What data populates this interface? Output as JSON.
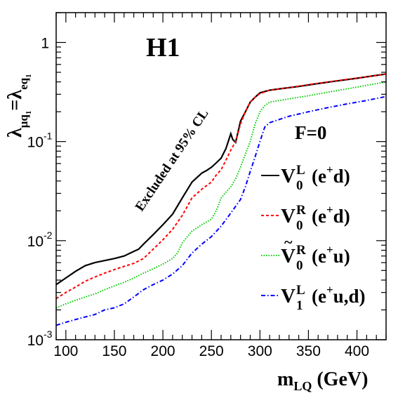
{
  "chart_data": {
    "type": "line",
    "experiment_label": "H1",
    "coupling_label": "F=0",
    "annotation": "Excluded at 95% CL",
    "xlabel": {
      "main": "m",
      "sub": "LQ",
      "unit": "(GeV)"
    },
    "ylabel": {
      "lambda1": "λ",
      "sub1": "μq",
      "sub1_index": "1",
      "eq": "=",
      "lambda2": "λ",
      "sub2": "eq",
      "sub2_index": "1"
    },
    "x_range": [
      90,
      430
    ],
    "y_range": [
      0.001,
      2.0
    ],
    "y_scale": "log",
    "x_ticks": [
      100,
      150,
      200,
      250,
      300,
      350,
      400
    ],
    "y_ticks": [
      {
        "value": 0.001,
        "base": "10",
        "exp": "-3"
      },
      {
        "value": 0.01,
        "base": "10",
        "exp": "-2"
      },
      {
        "value": 0.1,
        "base": "10",
        "exp": "-1"
      },
      {
        "value": 1,
        "base": "1",
        "exp": ""
      }
    ],
    "grid": false,
    "legend_position": "right",
    "series": [
      {
        "symbol": "V",
        "sup": "L",
        "sub": "0",
        "tilde": false,
        "process": "(e",
        "process_sup": "+",
        "process_end": "d)",
        "color": "#000000",
        "dash": "",
        "points": [
          [
            90,
            0.0036
          ],
          [
            100,
            0.0042
          ],
          [
            110,
            0.0049
          ],
          [
            120,
            0.0056
          ],
          [
            130,
            0.006
          ],
          [
            140,
            0.0063
          ],
          [
            150,
            0.0066
          ],
          [
            160,
            0.007
          ],
          [
            170,
            0.0078
          ],
          [
            175,
            0.0082
          ],
          [
            180,
            0.0092
          ],
          [
            190,
            0.0115
          ],
          [
            200,
            0.0145
          ],
          [
            210,
            0.0185
          ],
          [
            220,
            0.027
          ],
          [
            230,
            0.039
          ],
          [
            240,
            0.048
          ],
          [
            245,
            0.051
          ],
          [
            250,
            0.055
          ],
          [
            255,
            0.061
          ],
          [
            260,
            0.068
          ],
          [
            265,
            0.085
          ],
          [
            270,
            0.12
          ],
          [
            272,
            0.105
          ],
          [
            275,
            0.098
          ],
          [
            280,
            0.16
          ],
          [
            285,
            0.2
          ],
          [
            290,
            0.25
          ],
          [
            295,
            0.28
          ],
          [
            300,
            0.31
          ],
          [
            310,
            0.33
          ],
          [
            320,
            0.34
          ],
          [
            340,
            0.36
          ],
          [
            360,
            0.385
          ],
          [
            380,
            0.41
          ],
          [
            400,
            0.435
          ],
          [
            420,
            0.465
          ],
          [
            430,
            0.48
          ]
        ]
      },
      {
        "symbol": "V",
        "sup": "R",
        "sub": "0",
        "tilde": false,
        "process": "(e",
        "process_sup": "+",
        "process_end": "d)",
        "color": "#ff0000",
        "dash": "4,3",
        "points": [
          [
            90,
            0.0026
          ],
          [
            100,
            0.003
          ],
          [
            110,
            0.0034
          ],
          [
            120,
            0.0039
          ],
          [
            130,
            0.0043
          ],
          [
            140,
            0.0047
          ],
          [
            150,
            0.0051
          ],
          [
            160,
            0.0055
          ],
          [
            170,
            0.0059
          ],
          [
            180,
            0.0066
          ],
          [
            190,
            0.0082
          ],
          [
            200,
            0.0102
          ],
          [
            210,
            0.013
          ],
          [
            220,
            0.018
          ],
          [
            230,
            0.027
          ],
          [
            240,
            0.033
          ],
          [
            250,
            0.039
          ],
          [
            255,
            0.046
          ],
          [
            260,
            0.052
          ],
          [
            265,
            0.065
          ],
          [
            270,
            0.082
          ],
          [
            275,
            0.1
          ],
          [
            280,
            0.15
          ],
          [
            285,
            0.2
          ],
          [
            290,
            0.25
          ],
          [
            295,
            0.28
          ],
          [
            300,
            0.305
          ],
          [
            310,
            0.33
          ],
          [
            330,
            0.35
          ],
          [
            350,
            0.375
          ],
          [
            370,
            0.4
          ],
          [
            390,
            0.425
          ],
          [
            410,
            0.45
          ],
          [
            430,
            0.48
          ]
        ]
      },
      {
        "symbol": "V",
        "sup": "R",
        "sub": "0",
        "tilde": true,
        "process": "(e",
        "process_sup": "+",
        "process_end": "u)",
        "color": "#00cc00",
        "dash": "1.5,2",
        "points": [
          [
            90,
            0.0021
          ],
          [
            100,
            0.0023
          ],
          [
            110,
            0.0025
          ],
          [
            120,
            0.0027
          ],
          [
            130,
            0.0029
          ],
          [
            140,
            0.0032
          ],
          [
            150,
            0.0035
          ],
          [
            160,
            0.0038
          ],
          [
            170,
            0.0042
          ],
          [
            180,
            0.0047
          ],
          [
            190,
            0.0052
          ],
          [
            200,
            0.0058
          ],
          [
            210,
            0.0066
          ],
          [
            215,
            0.0075
          ],
          [
            220,
            0.0095
          ],
          [
            230,
            0.0125
          ],
          [
            240,
            0.0145
          ],
          [
            250,
            0.0165
          ],
          [
            255,
            0.02
          ],
          [
            260,
            0.027
          ],
          [
            270,
            0.035
          ],
          [
            275,
            0.042
          ],
          [
            280,
            0.055
          ],
          [
            285,
            0.075
          ],
          [
            290,
            0.1
          ],
          [
            295,
            0.15
          ],
          [
            300,
            0.2
          ],
          [
            305,
            0.23
          ],
          [
            310,
            0.25
          ],
          [
            330,
            0.27
          ],
          [
            350,
            0.29
          ],
          [
            370,
            0.315
          ],
          [
            390,
            0.34
          ],
          [
            410,
            0.37
          ],
          [
            430,
            0.4
          ]
        ]
      },
      {
        "symbol": "V",
        "sup": "L",
        "sub": "1",
        "tilde": false,
        "process": "(e",
        "process_sup": "+",
        "process_end": "u,d)",
        "color": "#0000ff",
        "dash": "6,3,1.5,3",
        "points": [
          [
            90,
            0.0014
          ],
          [
            100,
            0.0015
          ],
          [
            110,
            0.0016
          ],
          [
            120,
            0.0017
          ],
          [
            130,
            0.0018
          ],
          [
            140,
            0.002
          ],
          [
            150,
            0.0021
          ],
          [
            160,
            0.0023
          ],
          [
            170,
            0.0027
          ],
          [
            180,
            0.0032
          ],
          [
            190,
            0.0036
          ],
          [
            200,
            0.004
          ],
          [
            210,
            0.0046
          ],
          [
            220,
            0.0056
          ],
          [
            230,
            0.0075
          ],
          [
            240,
            0.0092
          ],
          [
            250,
            0.011
          ],
          [
            260,
            0.014
          ],
          [
            270,
            0.019
          ],
          [
            280,
            0.026
          ],
          [
            285,
            0.035
          ],
          [
            290,
            0.05
          ],
          [
            295,
            0.07
          ],
          [
            300,
            0.1
          ],
          [
            305,
            0.14
          ],
          [
            310,
            0.155
          ],
          [
            330,
            0.18
          ],
          [
            350,
            0.2
          ],
          [
            370,
            0.22
          ],
          [
            390,
            0.24
          ],
          [
            410,
            0.26
          ],
          [
            430,
            0.285
          ]
        ]
      }
    ]
  }
}
